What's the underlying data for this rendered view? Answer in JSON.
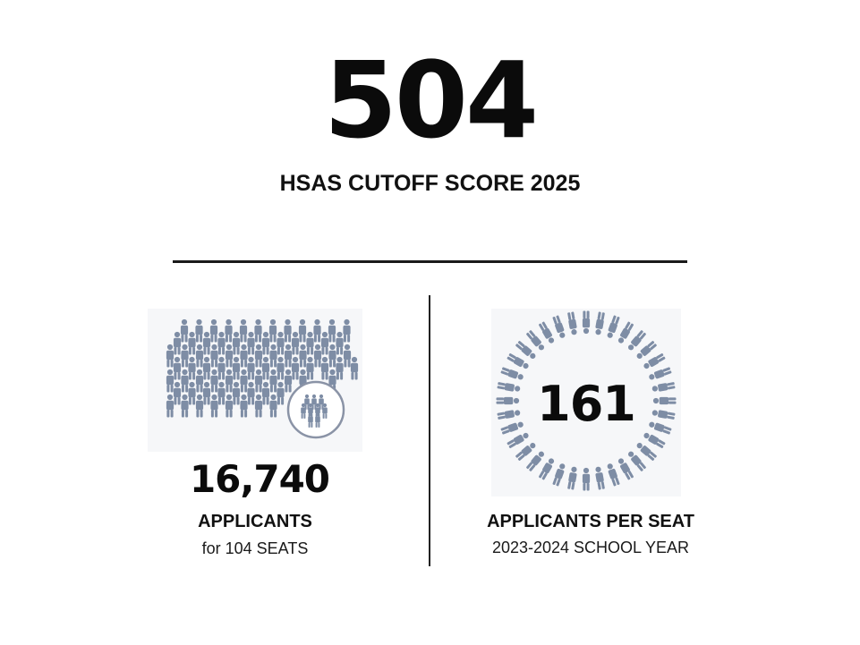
{
  "headline": {
    "score": "504",
    "caption": "HSAS CUTOFF SCORE 2025"
  },
  "applicants_stat": {
    "number": "16,740",
    "label": "APPLICANTS",
    "sub": "for 104 SEATS",
    "icon": "crowd-icon"
  },
  "ratio_stat": {
    "number": "161",
    "label": "APPLICANTS PER SEAT",
    "sub": "2023-2024 SCHOOL YEAR",
    "icon": "people-ring-icon"
  },
  "colors": {
    "text": "#111111",
    "icon_figure": "#7e8da5",
    "highlight_ring": "#8a93a6"
  }
}
